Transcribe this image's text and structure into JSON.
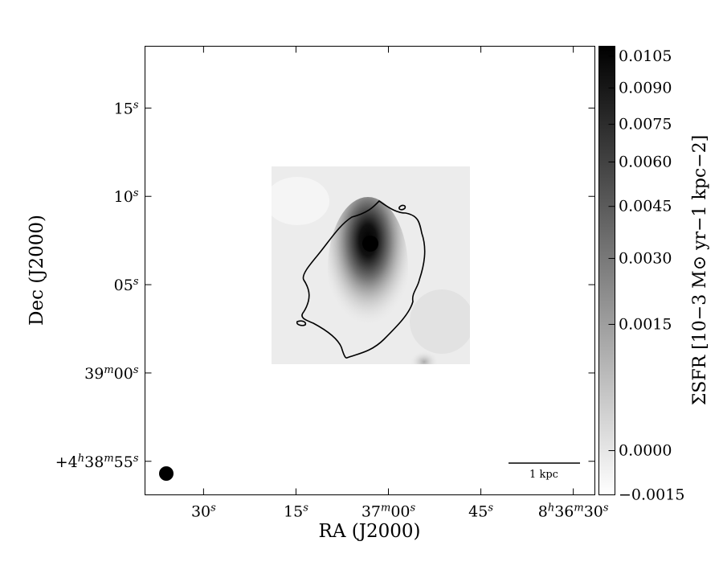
{
  "chart_data": {
    "type": "image",
    "xlabel": "RA (J2000)",
    "ylabel": "Dec (J2000)",
    "xlim": [
      99.5,
      26.5
    ],
    "xticks": [
      {
        "value": 90,
        "label": "30s"
      },
      {
        "value": 75,
        "label": "15s"
      },
      {
        "value": 60,
        "label": "37m00s"
      },
      {
        "value": 45,
        "label": "45s"
      },
      {
        "value": 30,
        "label": "8h36m30s"
      }
    ],
    "ylim": [
      53.1,
      78.5
    ],
    "yticks": [
      {
        "value": 55,
        "label": "+4h38m55s"
      },
      {
        "value": 60,
        "label": "39m00s"
      },
      {
        "value": 65,
        "label": "05s"
      },
      {
        "value": 70,
        "label": "10s"
      },
      {
        "value": 75,
        "label": "15s"
      }
    ],
    "colorbar": {
      "label": "ΣSFR [10−3 M⊙ yr−1 kpc−2]",
      "clim": [
        -0.0015,
        0.011
      ],
      "cmap": "gray_r",
      "ticks": [
        {
          "value": -0.0015,
          "label": "−0.0015"
        },
        {
          "value": 0,
          "label": "0.0000"
        },
        {
          "value": 0.0015,
          "label": "0.0015"
        },
        {
          "value": 0.003,
          "label": "0.0030"
        },
        {
          "value": 0.0045,
          "label": "0.0045"
        },
        {
          "value": 0.006,
          "label": "0.0060"
        },
        {
          "value": 0.0075,
          "label": "0.0075"
        },
        {
          "value": 0.009,
          "label": "0.0090"
        },
        {
          "value": 0.0105,
          "label": "0.0105"
        }
      ]
    },
    "scalebar_label": "1 kpc"
  }
}
